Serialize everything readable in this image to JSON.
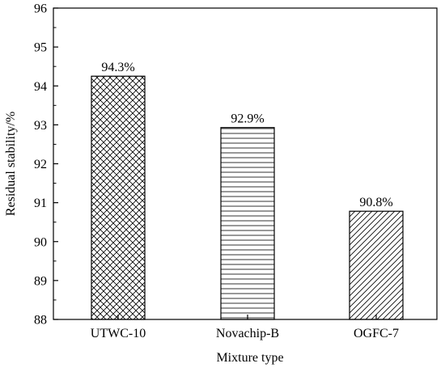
{
  "chart_data": {
    "type": "bar",
    "title": "",
    "xlabel": "Mixture type",
    "ylabel": "Residual stability/%",
    "ylim": [
      88,
      96
    ],
    "yticks": [
      88,
      89,
      90,
      91,
      92,
      93,
      94,
      95,
      96
    ],
    "grid": false,
    "categories": [
      "UTWC-10",
      "Novachip-B",
      "OGFC-7"
    ],
    "values": [
      94.25,
      92.93,
      90.78
    ],
    "data_labels": [
      "94.3%",
      "92.9%",
      "90.8%"
    ],
    "bar_patterns": [
      "crosshatch",
      "horizontal",
      "diagonal"
    ],
    "colors": {
      "bar_edge": "#000000",
      "bar_fill": "#ffffff",
      "pattern": "#000000",
      "axis": "#000000",
      "text": "#000000"
    }
  }
}
